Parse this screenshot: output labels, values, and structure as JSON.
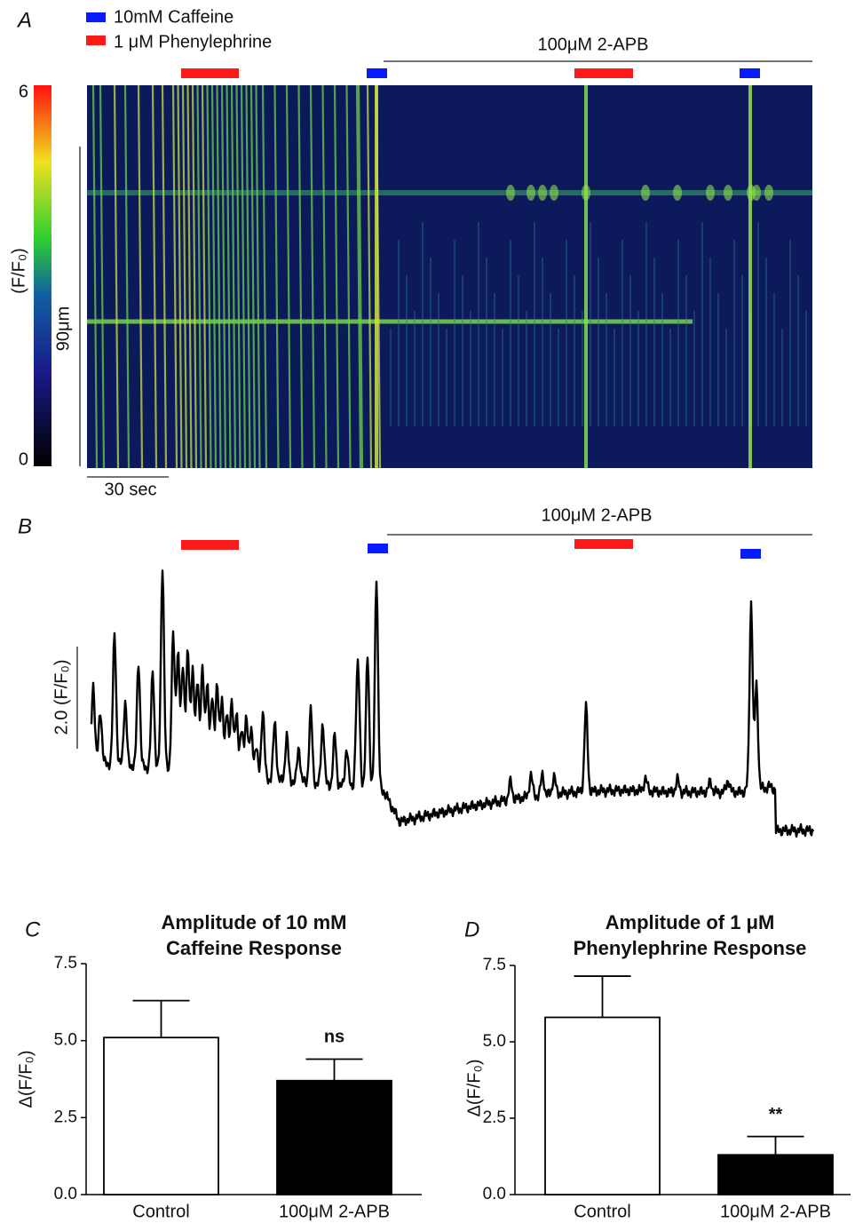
{
  "panel_a": {
    "label": "A",
    "legend": [
      {
        "name": "10mM Caffeine",
        "color": "#0a1aff"
      },
      {
        "name": "1 μM Phenylephrine",
        "color": "#ff1a1a"
      }
    ],
    "treatment": "100μM 2-APB",
    "colorbar": {
      "label": "(F/F₀)",
      "ticks": [
        0,
        6
      ]
    },
    "scale_y": "90μm",
    "scale_x": "30 sec"
  },
  "panel_b": {
    "label": "B",
    "treatment": "100μM 2-APB",
    "scale": "2.0 (F/F₀)"
  },
  "chart_data": [
    {
      "type": "bar",
      "panel": "C",
      "title": [
        "Amplitude of 10 mM",
        "Caffeine Response"
      ],
      "ylabel": "Δ(F/F₀)",
      "categories": [
        "Control",
        "100μM 2-APB"
      ],
      "values": [
        5.1,
        3.7
      ],
      "errors": [
        1.2,
        0.7
      ],
      "colors": [
        "#ffffff",
        "#000000"
      ],
      "annotations": [
        null,
        "ns"
      ],
      "ylim": [
        0,
        7.5
      ],
      "yticks": [
        {
          "value": 0,
          "label": "0.0"
        },
        {
          "value": 2.5,
          "label": "2.5"
        },
        {
          "value": 5,
          "label": "5.0"
        },
        {
          "value": 7.5,
          "label": "7.5"
        }
      ]
    },
    {
      "type": "bar",
      "panel": "D",
      "title": [
        "Amplitude of 1 μM",
        "Phenylephrine Response"
      ],
      "ylabel": "Δ(F/F₀)",
      "categories": [
        "Control",
        "100μM 2-APB"
      ],
      "values": [
        5.8,
        1.3
      ],
      "errors": [
        1.35,
        0.6
      ],
      "colors": [
        "#ffffff",
        "#000000"
      ],
      "annotations": [
        null,
        "**"
      ],
      "ylim": [
        0,
        7.5
      ],
      "yticks": [
        {
          "value": 0,
          "label": "0.0"
        },
        {
          "value": 2.5,
          "label": "2.5"
        },
        {
          "value": 5,
          "label": "5.0"
        },
        {
          "value": 7.5,
          "label": "7.5"
        }
      ]
    }
  ]
}
